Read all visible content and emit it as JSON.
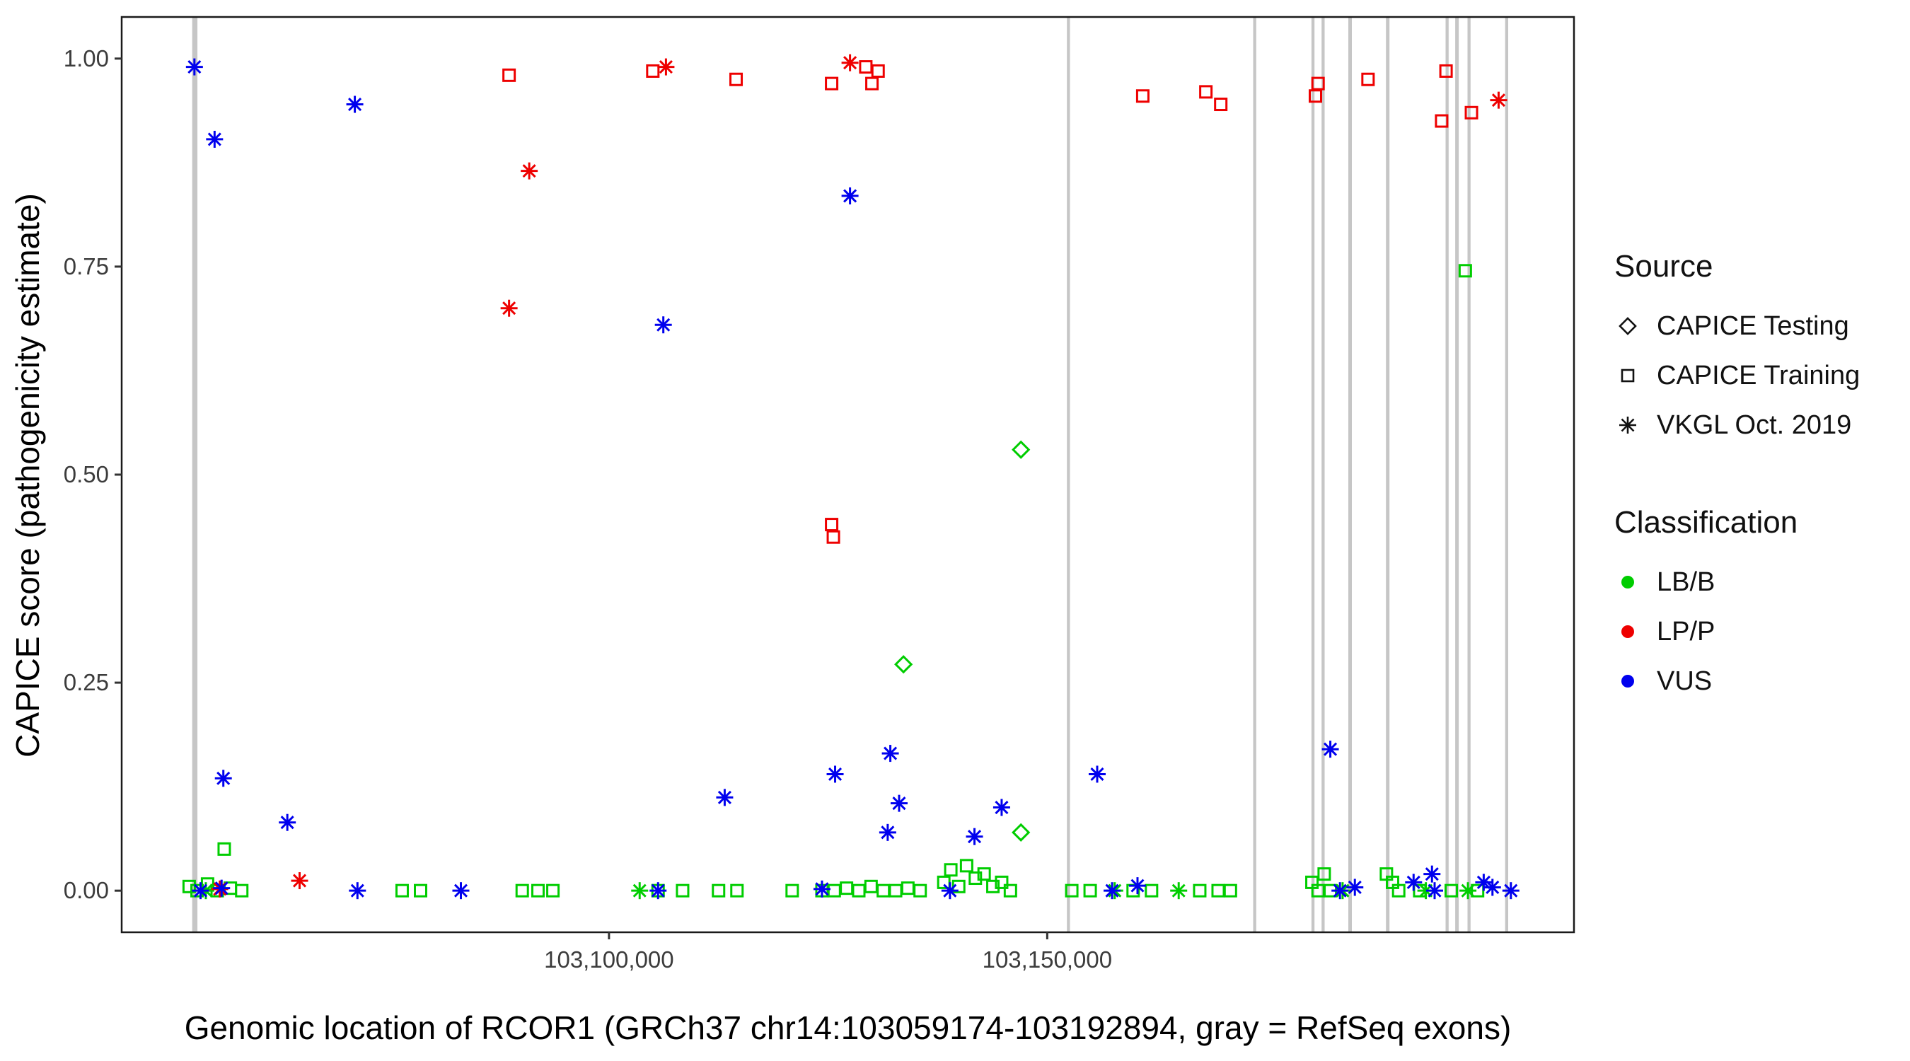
{
  "legend": {
    "source": {
      "title": "Source",
      "items": [
        {
          "shape": "diamond",
          "label": "CAPICE Testing"
        },
        {
          "shape": "square",
          "label": "CAPICE Training"
        },
        {
          "shape": "asterisk",
          "label": "VKGL Oct. 2019"
        }
      ]
    },
    "classification": {
      "title": "Classification",
      "items": [
        {
          "color": "#00CD00",
          "label": "LB/B"
        },
        {
          "color": "#EE0000",
          "label": "LP/P"
        },
        {
          "color": "#0000EE",
          "label": "VUS"
        }
      ]
    }
  },
  "chart_data": {
    "type": "scatter",
    "title": "",
    "xlabel": "Genomic location of RCOR1 (GRCh37 chr14:103059174-103192894, gray = RefSeq exons)",
    "ylabel": "CAPICE score (pathogenicity estimate)",
    "x_domain": [
      103044400,
      103210100
    ],
    "y_domain": [
      -0.05,
      1.05
    ],
    "x_ticks": [
      {
        "value": 103100000,
        "label": "103,100,000"
      },
      {
        "value": 103150000,
        "label": "103,150,000"
      }
    ],
    "y_ticks": [
      {
        "value": 0.0,
        "label": "0.00"
      },
      {
        "value": 0.25,
        "label": "0.25"
      },
      {
        "value": 0.5,
        "label": "0.50"
      },
      {
        "value": 0.75,
        "label": "0.75"
      },
      {
        "value": 1.0,
        "label": "1.00"
      }
    ],
    "colors": {
      "LB/B": "#00CD00",
      "LP/P": "#EE0000",
      "VUS": "#0000EE",
      "exon": "#C6C6C6"
    },
    "grid": false,
    "legend_position": "right",
    "exons": [
      [
        103052450,
        103053050
      ],
      [
        103152250,
        103152600
      ],
      [
        103173500,
        103173850
      ],
      [
        103180150,
        103180500
      ],
      [
        103181300,
        103181650
      ],
      [
        103184350,
        103184750
      ],
      [
        103188650,
        103189050
      ],
      [
        103195450,
        103195800
      ],
      [
        103196550,
        103196950
      ],
      [
        103197950,
        103198300
      ],
      [
        103202250,
        103202600
      ]
    ],
    "series": [
      {
        "name": "LB/B - CAPICE Testing",
        "classification": "LB/B",
        "source": "CAPICE Testing",
        "shape": "diamond",
        "color": "#00CD00",
        "points": [
          [
            103133600,
            0.272
          ],
          [
            103147000,
            0.53
          ],
          [
            103147000,
            0.07
          ]
        ]
      },
      {
        "name": "LB/B - CAPICE Training",
        "classification": "LB/B",
        "source": "CAPICE Training",
        "shape": "square",
        "color": "#00CD00",
        "points": [
          [
            103197700,
            0.745
          ],
          [
            103056100,
            0.05
          ],
          [
            103052100,
            0.005
          ],
          [
            103053000,
            0.0
          ],
          [
            103054200,
            0.008
          ],
          [
            103055300,
            0.0
          ],
          [
            103056800,
            0.003
          ],
          [
            103058100,
            0.0
          ],
          [
            103076400,
            0.0
          ],
          [
            103078500,
            0.0
          ],
          [
            103090100,
            0.0
          ],
          [
            103091900,
            0.0
          ],
          [
            103093600,
            0.0
          ],
          [
            103105600,
            0.0
          ],
          [
            103108400,
            0.0
          ],
          [
            103112500,
            0.0
          ],
          [
            103114600,
            0.0
          ],
          [
            103120900,
            0.0
          ],
          [
            103124300,
            0.0
          ],
          [
            103125700,
            0.0
          ],
          [
            103127100,
            0.003
          ],
          [
            103128500,
            0.0
          ],
          [
            103129900,
            0.005
          ],
          [
            103131300,
            0.0
          ],
          [
            103132700,
            0.0
          ],
          [
            103134100,
            0.003
          ],
          [
            103135500,
            0.0
          ],
          [
            103138200,
            0.01
          ],
          [
            103139000,
            0.025
          ],
          [
            103139900,
            0.005
          ],
          [
            103140800,
            0.03
          ],
          [
            103141800,
            0.015
          ],
          [
            103142800,
            0.02
          ],
          [
            103143800,
            0.005
          ],
          [
            103144800,
            0.01
          ],
          [
            103145800,
            0.0
          ],
          [
            103152800,
            0.0
          ],
          [
            103154900,
            0.0
          ],
          [
            103159800,
            0.0
          ],
          [
            103161900,
            0.0
          ],
          [
            103167400,
            0.0
          ],
          [
            103169500,
            0.0
          ],
          [
            103170900,
            0.0
          ],
          [
            103180200,
            0.01
          ],
          [
            103180900,
            0.0
          ],
          [
            103181600,
            0.02
          ],
          [
            103182300,
            0.0
          ],
          [
            103188700,
            0.02
          ],
          [
            103189400,
            0.01
          ],
          [
            103190100,
            0.0
          ],
          [
            103192500,
            0.0
          ],
          [
            103196100,
            0.0
          ],
          [
            103199100,
            0.0
          ]
        ]
      },
      {
        "name": "LB/B - VKGL Oct. 2019",
        "classification": "LB/B",
        "source": "VKGL Oct. 2019",
        "shape": "asterisk",
        "color": "#00CD00",
        "points": [
          [
            103054000,
            0.0
          ],
          [
            103103500,
            0.0
          ],
          [
            103157700,
            0.0
          ],
          [
            103165000,
            0.0
          ],
          [
            103183700,
            0.0
          ],
          [
            103193200,
            0.0
          ],
          [
            103198000,
            0.0
          ]
        ]
      },
      {
        "name": "LP/P - CAPICE Training",
        "classification": "LP/P",
        "source": "CAPICE Training",
        "shape": "square",
        "color": "#EE0000",
        "points": [
          [
            103088600,
            0.98
          ],
          [
            103105000,
            0.985
          ],
          [
            103114500,
            0.975
          ],
          [
            103125400,
            0.97
          ],
          [
            103129300,
            0.99
          ],
          [
            103130000,
            0.97
          ],
          [
            103130700,
            0.985
          ],
          [
            103160900,
            0.955
          ],
          [
            103168100,
            0.96
          ],
          [
            103169800,
            0.945
          ],
          [
            103180600,
            0.955
          ],
          [
            103180900,
            0.97
          ],
          [
            103186600,
            0.975
          ],
          [
            103195000,
            0.925
          ],
          [
            103195500,
            0.985
          ],
          [
            103198400,
            0.935
          ],
          [
            103125400,
            0.44
          ],
          [
            103125600,
            0.425
          ]
        ]
      },
      {
        "name": "LP/P - VKGL Oct. 2019",
        "classification": "LP/P",
        "source": "VKGL Oct. 2019",
        "shape": "asterisk",
        "color": "#EE0000",
        "points": [
          [
            103106500,
            0.99
          ],
          [
            103127500,
            0.995
          ],
          [
            103201500,
            0.95
          ],
          [
            103090900,
            0.865
          ],
          [
            103088600,
            0.7
          ],
          [
            103064700,
            0.012
          ],
          [
            103055600,
            0.002
          ]
        ]
      },
      {
        "name": "VUS - VKGL Oct. 2019",
        "classification": "VUS",
        "source": "VKGL Oct. 2019",
        "shape": "asterisk",
        "color": "#0000EE",
        "points": [
          [
            103052700,
            0.99
          ],
          [
            103055000,
            0.903
          ],
          [
            103071000,
            0.945
          ],
          [
            103127500,
            0.835
          ],
          [
            103106200,
            0.68
          ],
          [
            103056000,
            0.135
          ],
          [
            103063300,
            0.082
          ],
          [
            103113200,
            0.112
          ],
          [
            103125800,
            0.14
          ],
          [
            103132100,
            0.165
          ],
          [
            103133100,
            0.105
          ],
          [
            103131800,
            0.07
          ],
          [
            103141700,
            0.065
          ],
          [
            103144800,
            0.1
          ],
          [
            103155700,
            0.14
          ],
          [
            103182300,
            0.17
          ],
          [
            103053400,
            0.0
          ],
          [
            103055800,
            0.003
          ],
          [
            103071300,
            0.0
          ],
          [
            103083100,
            0.0
          ],
          [
            103105600,
            0.0
          ],
          [
            103124300,
            0.002
          ],
          [
            103138900,
            0.0
          ],
          [
            103157400,
            0.0
          ],
          [
            103160300,
            0.006
          ],
          [
            103183400,
            0.0
          ],
          [
            103185100,
            0.004
          ],
          [
            103191800,
            0.01
          ],
          [
            103193900,
            0.02
          ],
          [
            103194200,
            0.0
          ],
          [
            103199800,
            0.01
          ],
          [
            103200800,
            0.004
          ],
          [
            103202900,
            0.0
          ]
        ]
      }
    ]
  }
}
